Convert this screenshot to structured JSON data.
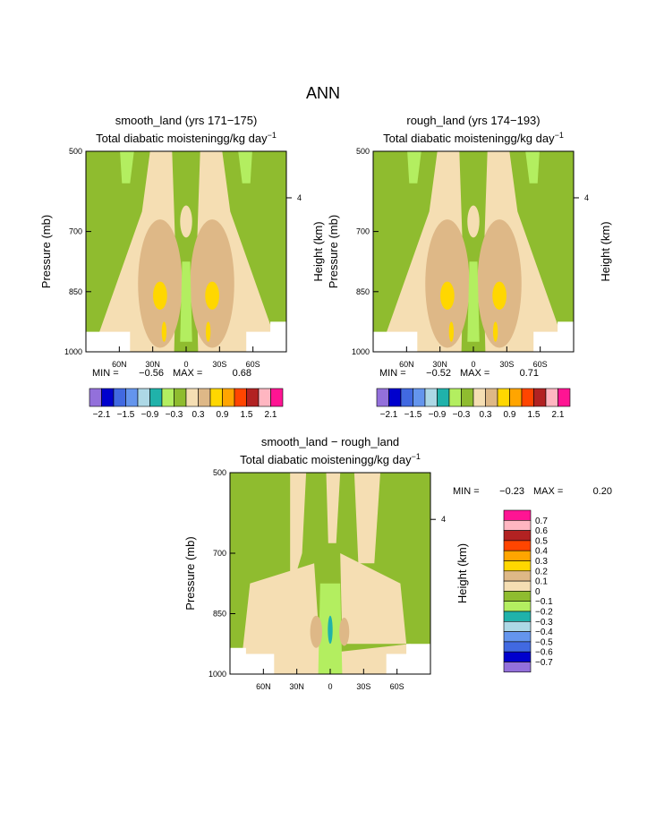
{
  "figure_title": "ANN",
  "colors": {
    "c_m21": "#9370db",
    "c_m18": "#0000cd",
    "c_m15": "#4169e1",
    "c_m12": "#6495ed",
    "c_m09": "#add8e6",
    "c_m06": "#20b2aa",
    "c_m03": "#b3ee60",
    "c_m00": "#8fbc2f",
    "c_p00": "#f5deb3",
    "c_p03": "#deb887",
    "c_p06": "#ffd700",
    "c_p09": "#ffa500",
    "c_p12": "#ff4500",
    "c_p15": "#b22222",
    "c_p18": "#ffb6c1",
    "c_p21": "#ff1493"
  },
  "chart_data": [
    {
      "type": "heatmap",
      "title": "smooth_land (yrs 171−175)",
      "subtitle": "Total diabatic moistening",
      "units_base": "g/kg day",
      "units_exp": "−1",
      "ylabel": "Pressure (mb)",
      "y2label": "Height (km)",
      "yticks": [
        "500",
        "700",
        "850",
        "1000"
      ],
      "y2ticks": [
        "4"
      ],
      "xticks": [
        "60N",
        "30N",
        "0",
        "30S",
        "60S"
      ],
      "stats": {
        "min_label": "MIN =",
        "min": "−0.56",
        "max_label": "MAX =",
        "max": "0.68"
      },
      "ylim": [
        1000,
        500
      ],
      "xlim": [
        90,
        -90
      ]
    },
    {
      "type": "heatmap",
      "title": "rough_land (yrs 174−193)",
      "subtitle": "Total diabatic moistening",
      "units_base": "g/kg day",
      "units_exp": "−1",
      "ylabel": "Pressure (mb)",
      "y2label": "Height (km)",
      "yticks": [
        "500",
        "700",
        "850",
        "1000"
      ],
      "y2ticks": [
        "4"
      ],
      "xticks": [
        "60N",
        "30N",
        "0",
        "30S",
        "60S"
      ],
      "stats": {
        "min_label": "MIN =",
        "min": "−0.52",
        "max_label": "MAX =",
        "max": "0.71"
      },
      "ylim": [
        1000,
        500
      ],
      "xlim": [
        90,
        -90
      ]
    },
    {
      "type": "heatmap",
      "title": "smooth_land − rough_land",
      "subtitle": "Total diabatic moistening",
      "units_base": "g/kg day",
      "units_exp": "−1",
      "ylabel": "Pressure (mb)",
      "y2label": "Height (km)",
      "yticks": [
        "500",
        "700",
        "850",
        "1000"
      ],
      "y2ticks": [
        "4"
      ],
      "xticks": [
        "60N",
        "30N",
        "0",
        "30S",
        "60S"
      ],
      "stats": {
        "min_label": "MIN =",
        "min": "−0.23",
        "max_label": "MAX =",
        "max": "0.20"
      },
      "ylim": [
        1000,
        500
      ],
      "xlim": [
        90,
        -90
      ]
    }
  ],
  "colorbar_top": {
    "labels": [
      "−2.1",
      "−1.5",
      "−0.9",
      "−0.3",
      "0.3",
      "0.9",
      "1.5",
      "2.1"
    ],
    "colors": [
      "#9370db",
      "#0000cd",
      "#4169e1",
      "#6495ed",
      "#add8e6",
      "#20b2aa",
      "#b3ee60",
      "#8fbc2f",
      "#f5deb3",
      "#deb887",
      "#ffd700",
      "#ffa500",
      "#ff4500",
      "#b22222",
      "#ffb6c1",
      "#ff1493"
    ]
  },
  "colorbar_diff": {
    "labels": [
      "0.7",
      "0.6",
      "0.5",
      "0.4",
      "0.3",
      "0.2",
      "0.1",
      "0",
      "−0.1",
      "−0.2",
      "−0.3",
      "−0.4",
      "−0.5",
      "−0.6",
      "−0.7"
    ],
    "colors": [
      "#ff1493",
      "#ffb6c1",
      "#b22222",
      "#ff4500",
      "#ffa500",
      "#ffd700",
      "#deb887",
      "#f5deb3",
      "#8fbc2f",
      "#b3ee60",
      "#20b2aa",
      "#add8e6",
      "#6495ed",
      "#4169e1",
      "#0000cd",
      "#9370db"
    ]
  }
}
